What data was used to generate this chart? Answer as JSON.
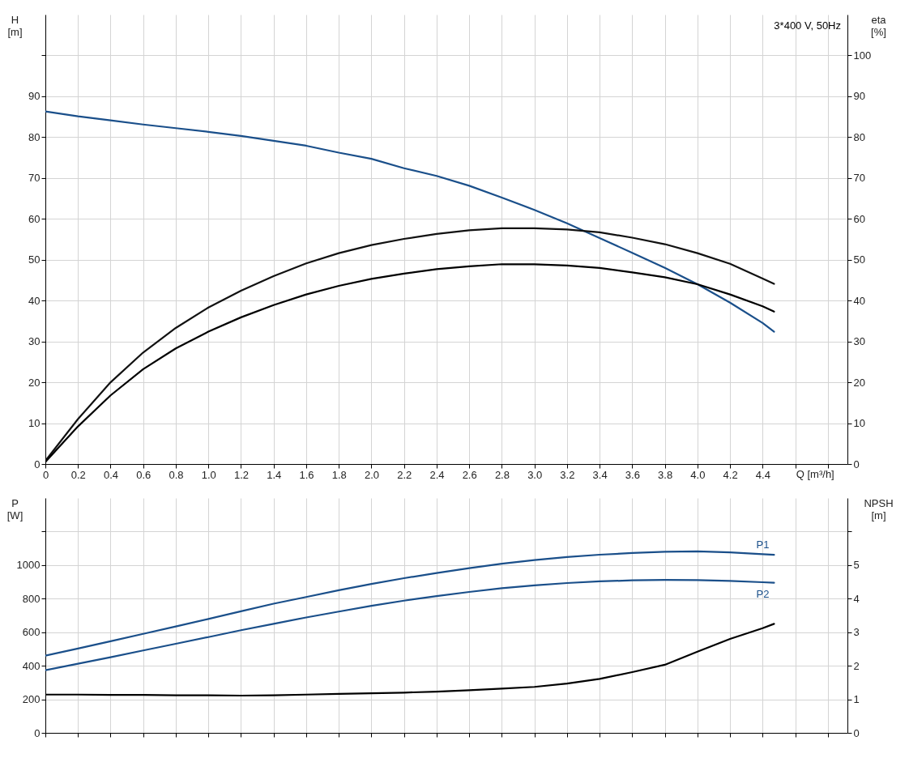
{
  "chart_data": [
    {
      "type": "line",
      "xlabel": "Q [m³/h]",
      "ylabel": "H [m]",
      "y2label": "eta [%]",
      "annotations": [
        "3*400 V, 50Hz"
      ],
      "grid": true,
      "legend": false,
      "x": [
        0,
        0.2,
        0.4,
        0.6,
        0.8,
        1.0,
        1.2,
        1.4,
        1.6,
        1.8,
        2.0,
        2.2,
        2.4,
        2.6,
        2.8,
        3.0,
        3.2,
        3.4,
        3.6,
        3.8,
        4.0,
        4.2,
        4.4,
        4.47
      ],
      "xlim": [
        0,
        4.92
      ],
      "xticks": [
        0,
        0.2,
        0.4,
        0.6,
        0.8,
        {
          "value": 1,
          "label": "1.0"
        },
        1.2,
        1.4,
        1.6,
        1.8,
        {
          "value": 2,
          "label": "2.0"
        },
        2.2,
        2.4,
        2.6,
        2.8,
        {
          "value": 3,
          "label": "3.0"
        },
        3.2,
        3.4,
        3.6,
        3.8,
        {
          "value": 4,
          "label": "4.0"
        },
        4.2,
        4.4,
        {
          "value": 4.6,
          "label": null
        },
        {
          "value": 4.8,
          "label": null
        }
      ],
      "ylim": [
        0,
        110
      ],
      "yticks": [
        0,
        10,
        20,
        30,
        40,
        50,
        60,
        70,
        80,
        90,
        {
          "value": 100,
          "label": null
        }
      ],
      "y2lim": [
        0,
        110
      ],
      "y2ticks": [
        0,
        10,
        20,
        30,
        40,
        50,
        60,
        70,
        80,
        90,
        100
      ],
      "series": [
        {
          "color": "#1a4f8a",
          "values": [
            86.3,
            85.1,
            84.1,
            83.1,
            82.2,
            81.3,
            80.3,
            79.1,
            77.9,
            76.2,
            74.7,
            72.4,
            70.5,
            68.1,
            65.2,
            62.2,
            58.9,
            55.3,
            51.7,
            48.0,
            44.0,
            39.5,
            34.5,
            32.4
          ]
        },
        {
          "color": "#111111",
          "axis": "y2",
          "values": [
            0.8,
            11,
            20,
            27.3,
            33.3,
            38.3,
            42.4,
            46,
            49.1,
            51.6,
            53.6,
            55.1,
            56.3,
            57.2,
            57.7,
            57.7,
            57.4,
            56.7,
            55.4,
            53.8,
            51.6,
            49.0,
            45.4,
            44.1
          ]
        },
        {
          "color": "#000000",
          "axis": "y2",
          "values": [
            0.5,
            9.2,
            16.8,
            23.2,
            28.3,
            32.4,
            35.9,
            38.9,
            41.5,
            43.6,
            45.3,
            46.6,
            47.7,
            48.4,
            48.9,
            48.9,
            48.6,
            48.0,
            46.9,
            45.7,
            44.0,
            41.5,
            38.6,
            37.3
          ]
        }
      ]
    },
    {
      "type": "line",
      "ylabel": "P [W]",
      "y2label": "NPSH [m]",
      "grid": true,
      "legend": false,
      "tick_labels": "y",
      "x": [
        0,
        0.2,
        0.4,
        0.6,
        0.8,
        1.0,
        1.2,
        1.4,
        1.6,
        1.8,
        2.0,
        2.2,
        2.4,
        2.6,
        2.8,
        3.0,
        3.2,
        3.4,
        3.6,
        3.8,
        4.0,
        4.2,
        4.4,
        4.47
      ],
      "xlim": [
        0,
        4.92
      ],
      "xticks": [
        0,
        0.2,
        0.4,
        0.6,
        0.8,
        1,
        1.2,
        1.4,
        1.6,
        1.8,
        2,
        2.2,
        2.4,
        2.6,
        2.8,
        3,
        3.2,
        3.4,
        3.6,
        3.8,
        4,
        4.2,
        4.4,
        4.6,
        4.8
      ],
      "ylim": [
        0,
        1400
      ],
      "yticks": [
        0,
        200,
        400,
        600,
        800,
        1000,
        {
          "value": 1200,
          "label": null
        }
      ],
      "y2lim": [
        0,
        7
      ],
      "y2ticks": [
        0,
        1,
        2,
        3,
        4,
        5,
        {
          "value": 6,
          "label": null
        }
      ],
      "series": [
        {
          "name": "P1",
          "color": "#1a4f8a",
          "values": [
            460,
            503,
            546,
            590,
            634,
            679,
            725,
            770,
            810,
            850,
            888,
            922,
            953,
            982,
            1008,
            1030,
            1048,
            1062,
            1072,
            1080,
            1082,
            1076,
            1065,
            1061
          ]
        },
        {
          "name": "P2",
          "color": "#1a4f8a",
          "values": [
            373,
            412,
            451,
            491,
            531,
            571,
            612,
            650,
            688,
            723,
            757,
            788,
            815,
            840,
            862,
            879,
            893,
            903,
            909,
            912,
            911,
            906,
            898,
            895
          ]
        },
        {
          "color": "#000000",
          "axis": "y2",
          "values": [
            1.14,
            1.14,
            1.13,
            1.13,
            1.12,
            1.12,
            1.11,
            1.12,
            1.14,
            1.16,
            1.18,
            1.2,
            1.23,
            1.27,
            1.32,
            1.37,
            1.47,
            1.61,
            1.81,
            2.03,
            2.42,
            2.8,
            3.12,
            3.25
          ]
        }
      ]
    }
  ]
}
